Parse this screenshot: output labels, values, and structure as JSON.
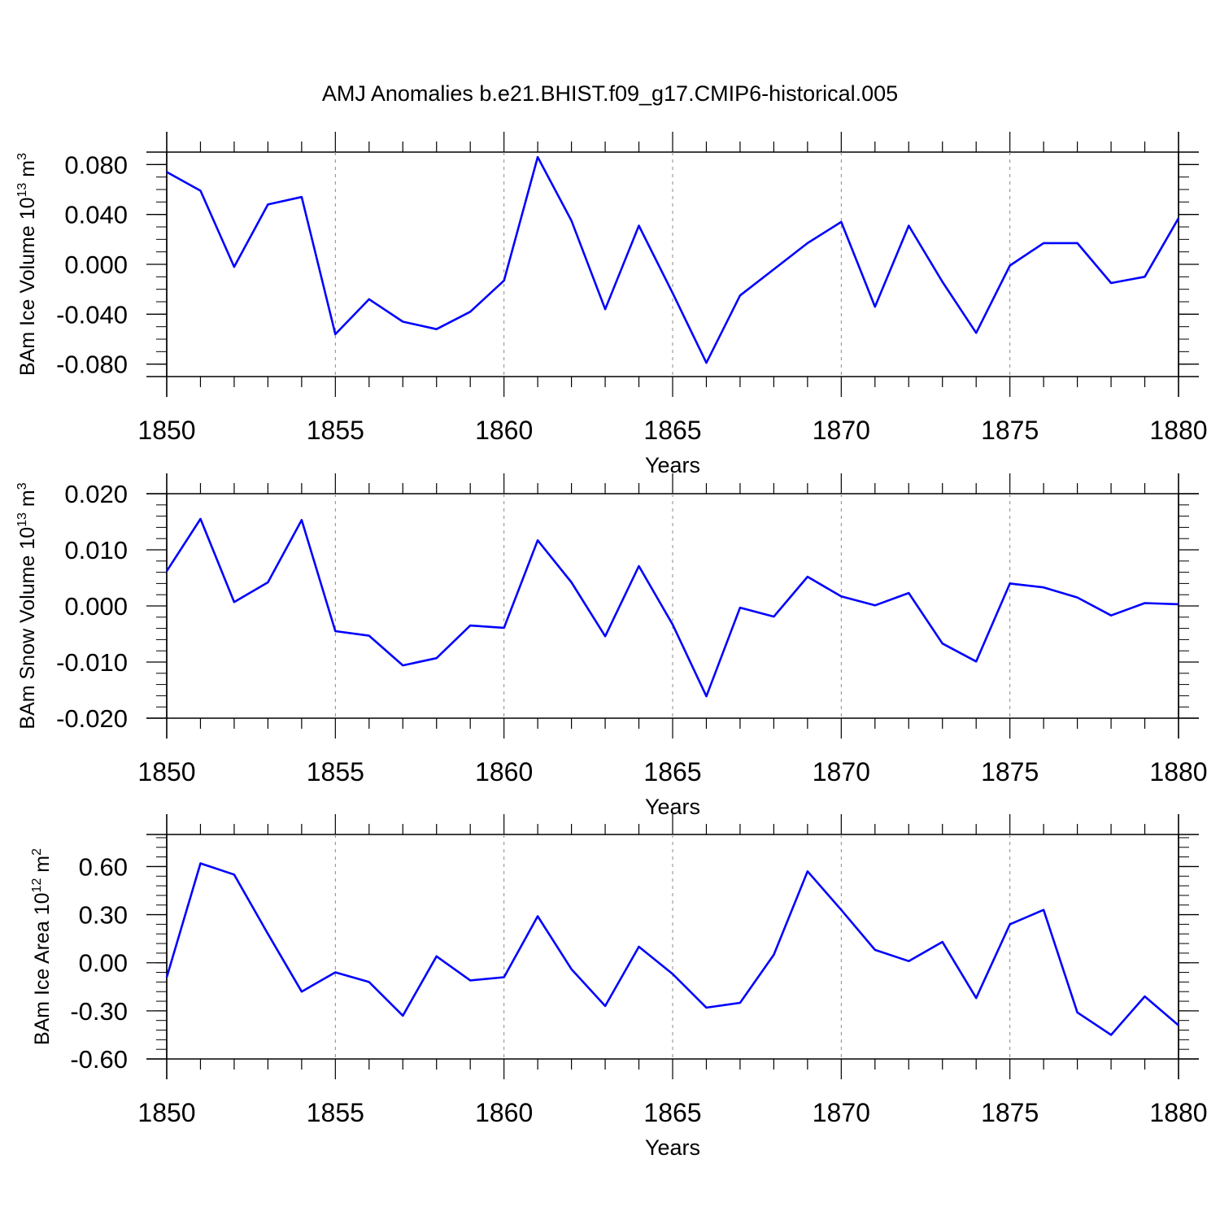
{
  "title": "AMJ Anomalies b.e21.BHIST.f09_g17.CMIP6-historical.005",
  "colors": {
    "line": "#0000ff",
    "axis": "#000000",
    "grid": "#888888",
    "background": "#ffffff"
  },
  "chart_data": [
    {
      "type": "line",
      "ylabel_main": "BAm Ice Volume 10",
      "ylabel_exp": "13",
      "ylabel_unit": " m",
      "ylabel_unit_exp": "3",
      "xlabel": "Years",
      "xlim": [
        1850,
        1880
      ],
      "ylim": [
        -0.09,
        0.09
      ],
      "grid": "vertical dashed at major x ticks",
      "x_ticks": [
        "1850",
        "1855",
        "1860",
        "1865",
        "1870",
        "1875",
        "1880"
      ],
      "y_ticks": [
        "0.080",
        "0.040",
        "0.000",
        "-0.040",
        "-0.080"
      ],
      "y_tick_values": [
        0.08,
        0.04,
        0.0,
        -0.04,
        -0.08
      ],
      "y_minor_step": 0.01,
      "x": [
        1850,
        1851,
        1852,
        1853,
        1854,
        1855,
        1856,
        1857,
        1858,
        1859,
        1860,
        1861,
        1862,
        1863,
        1864,
        1865,
        1866,
        1867,
        1868,
        1869,
        1870,
        1871,
        1872,
        1873,
        1874,
        1875,
        1876,
        1877,
        1878,
        1879,
        1880
      ],
      "series": [
        {
          "name": "BAm Ice Volume",
          "values": [
            0.074,
            0.059,
            -0.002,
            0.048,
            0.054,
            -0.056,
            -0.028,
            -0.046,
            -0.052,
            -0.038,
            -0.013,
            0.086,
            0.035,
            -0.036,
            0.031,
            -0.023,
            -0.079,
            -0.025,
            -0.004,
            0.017,
            0.034,
            -0.034,
            0.031,
            -0.014,
            -0.055,
            -0.001,
            0.017,
            0.017,
            -0.015,
            -0.01,
            0.037
          ]
        }
      ]
    },
    {
      "type": "line",
      "ylabel_main": "BAm Snow Volume 10",
      "ylabel_exp": "13",
      "ylabel_unit": " m",
      "ylabel_unit_exp": "3",
      "xlabel": "Years",
      "xlim": [
        1850,
        1880
      ],
      "ylim": [
        -0.02,
        0.02
      ],
      "grid": "vertical dashed at major x ticks",
      "x_ticks": [
        "1850",
        "1855",
        "1860",
        "1865",
        "1870",
        "1875",
        "1880"
      ],
      "y_ticks": [
        "0.020",
        "0.010",
        "0.000",
        "-0.010",
        "-0.020"
      ],
      "y_tick_values": [
        0.02,
        0.01,
        0.0,
        -0.01,
        -0.02
      ],
      "y_minor_step": 0.002,
      "x": [
        1850,
        1851,
        1852,
        1853,
        1854,
        1855,
        1856,
        1857,
        1858,
        1859,
        1860,
        1861,
        1862,
        1863,
        1864,
        1865,
        1866,
        1867,
        1868,
        1869,
        1870,
        1871,
        1872,
        1873,
        1874,
        1875,
        1876,
        1877,
        1878,
        1879,
        1880
      ],
      "series": [
        {
          "name": "BAm Snow Volume",
          "values": [
            0.0062,
            0.0155,
            0.0007,
            0.0042,
            0.0153,
            -0.0045,
            -0.0053,
            -0.0106,
            -0.0093,
            -0.0035,
            -0.0039,
            0.0117,
            0.0042,
            -0.0054,
            0.0071,
            -0.0033,
            -0.0161,
            -0.0003,
            -0.0019,
            0.0052,
            0.0017,
            0.0001,
            0.0023,
            -0.0067,
            -0.0099,
            0.004,
            0.0033,
            0.0015,
            -0.0017,
            0.0005,
            0.0003
          ]
        }
      ]
    },
    {
      "type": "line",
      "ylabel_main": "BAm Ice Area 10",
      "ylabel_exp": "12",
      "ylabel_unit": " m",
      "ylabel_unit_exp": "2",
      "xlabel": "Years",
      "xlim": [
        1850,
        1880
      ],
      "ylim": [
        -0.6,
        0.8
      ],
      "grid": "vertical dashed at major x ticks",
      "x_ticks": [
        "1850",
        "1855",
        "1860",
        "1865",
        "1870",
        "1875",
        "1880"
      ],
      "y_ticks": [
        "0.60",
        "0.30",
        "0.00",
        "-0.30",
        "-0.60"
      ],
      "y_tick_values": [
        0.6,
        0.3,
        0.0,
        -0.3,
        -0.6
      ],
      "y_minor_step": 0.06,
      "x": [
        1850,
        1851,
        1852,
        1853,
        1854,
        1855,
        1856,
        1857,
        1858,
        1859,
        1860,
        1861,
        1862,
        1863,
        1864,
        1865,
        1866,
        1867,
        1868,
        1869,
        1870,
        1871,
        1872,
        1873,
        1874,
        1875,
        1876,
        1877,
        1878,
        1879,
        1880
      ],
      "series": [
        {
          "name": "BAm Ice Area",
          "values": [
            -0.09,
            0.62,
            0.55,
            0.18,
            -0.18,
            -0.06,
            -0.12,
            -0.33,
            0.04,
            -0.11,
            -0.09,
            0.29,
            -0.04,
            -0.27,
            0.1,
            -0.07,
            -0.28,
            -0.25,
            0.05,
            0.57,
            0.33,
            0.08,
            0.01,
            0.13,
            -0.22,
            0.24,
            0.33,
            -0.31,
            -0.45,
            -0.21,
            -0.39
          ]
        }
      ]
    }
  ]
}
